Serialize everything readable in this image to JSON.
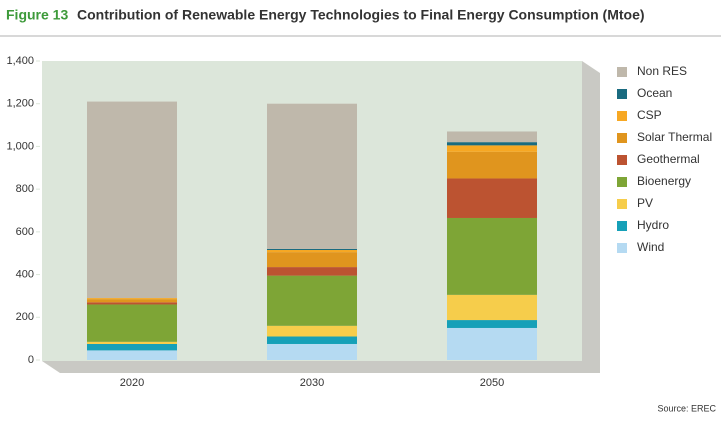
{
  "chart_data": {
    "type": "stacked_bar",
    "figure_label": "Figure 13",
    "title": "Contribution of Renewable Energy Technologies to Final Energy Consumption (Mtoe)",
    "source": "Source: EREC",
    "categories": [
      "2020",
      "2030",
      "2050"
    ],
    "series": [
      {
        "name": "Wind",
        "color": "#b5daf2",
        "values": [
          45,
          75,
          150
        ]
      },
      {
        "name": "Hydro",
        "color": "#16a0b8",
        "values": [
          30,
          35,
          37
        ]
      },
      {
        "name": "PV",
        "color": "#f6cd4b",
        "values": [
          10,
          50,
          118
        ]
      },
      {
        "name": "Bioenergy",
        "color": "#7ea536",
        "values": [
          175,
          235,
          360
        ]
      },
      {
        "name": "Geothermal",
        "color": "#bc5331",
        "values": [
          10,
          40,
          185
        ]
      },
      {
        "name": "Solar Thermal",
        "color": "#e0951e",
        "values": [
          15,
          70,
          125
        ]
      },
      {
        "name": "CSP",
        "color": "#f7a823",
        "values": [
          5,
          10,
          30
        ]
      },
      {
        "name": "Ocean",
        "color": "#1a6b80",
        "values": [
          0,
          5,
          15
        ]
      },
      {
        "name": "Non RES",
        "color": "#bfb8ab",
        "values": [
          920,
          680,
          50
        ]
      }
    ],
    "ylim": [
      0,
      1400
    ],
    "yticks": [
      0,
      200,
      400,
      600,
      800,
      {
        "value": 1000,
        "label": "1,000"
      },
      {
        "value": 1200,
        "label": "1,200"
      },
      {
        "value": 1400,
        "label": "1,400"
      }
    ]
  }
}
